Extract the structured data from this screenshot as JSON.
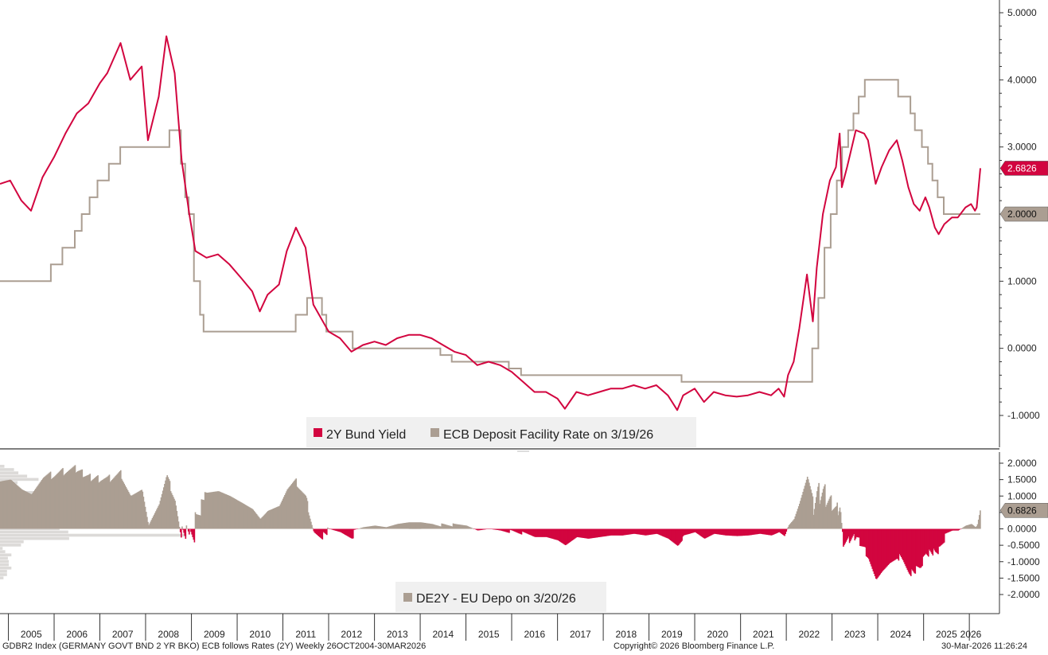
{
  "footer": {
    "left": "GDBR2 Index (GERMANY GOVT BND 2 YR BKO) ECB follows Rates (2Y) Weekly 26OCT2004-30MAR2026",
    "center": "Copyright© 2026 Bloomberg Finance L.P.",
    "right": "30-Mar-2026 11:26:24"
  },
  "colors": {
    "bund": "#d2053f",
    "depo": "#ab9e92",
    "spread_pos": "#ab9e92",
    "spread_neg": "#d2053f",
    "hist": "#dcdad8"
  },
  "chart_data": [
    {
      "type": "line",
      "ylim": [
        -1.0,
        5.0
      ],
      "yticks": [
        "5.0000",
        "4.0000",
        "3.0000",
        "2.0000",
        "1.0000",
        "0.0000",
        "-1.0000"
      ],
      "legend": "bottom-center",
      "series": [
        {
          "name": "2Y Bund Yield",
          "last_label": "2.6826",
          "points": [
            [
              "2004-10-26",
              2.45
            ],
            [
              "2005-01-15",
              2.5
            ],
            [
              "2005-04-15",
              2.2
            ],
            [
              "2005-07-01",
              2.05
            ],
            [
              "2005-10-01",
              2.55
            ],
            [
              "2006-01-01",
              2.85
            ],
            [
              "2006-04-01",
              3.2
            ],
            [
              "2006-07-01",
              3.5
            ],
            [
              "2006-10-01",
              3.65
            ],
            [
              "2007-01-01",
              3.95
            ],
            [
              "2007-03-01",
              4.1
            ],
            [
              "2007-06-15",
              4.55
            ],
            [
              "2007-09-01",
              4.0
            ],
            [
              "2007-12-01",
              4.2
            ],
            [
              "2008-01-20",
              3.1
            ],
            [
              "2008-04-15",
              3.75
            ],
            [
              "2008-06-15",
              4.65
            ],
            [
              "2008-08-20",
              4.1
            ],
            [
              "2008-10-15",
              2.8
            ],
            [
              "2008-12-15",
              2.0
            ],
            [
              "2009-02-01",
              1.45
            ],
            [
              "2009-05-01",
              1.35
            ],
            [
              "2009-08-01",
              1.4
            ],
            [
              "2009-11-01",
              1.25
            ],
            [
              "2010-02-01",
              1.05
            ],
            [
              "2010-05-01",
              0.85
            ],
            [
              "2010-07-01",
              0.55
            ],
            [
              "2010-09-01",
              0.8
            ],
            [
              "2010-12-01",
              0.95
            ],
            [
              "2011-02-01",
              1.45
            ],
            [
              "2011-04-15",
              1.8
            ],
            [
              "2011-07-01",
              1.5
            ],
            [
              "2011-09-01",
              0.65
            ],
            [
              "2011-11-01",
              0.45
            ],
            [
              "2012-01-01",
              0.25
            ],
            [
              "2012-04-01",
              0.15
            ],
            [
              "2012-07-01",
              -0.05
            ],
            [
              "2012-10-01",
              0.05
            ],
            [
              "2013-01-01",
              0.1
            ],
            [
              "2013-04-01",
              0.05
            ],
            [
              "2013-07-01",
              0.15
            ],
            [
              "2013-10-01",
              0.2
            ],
            [
              "2014-01-01",
              0.2
            ],
            [
              "2014-04-01",
              0.15
            ],
            [
              "2014-07-01",
              0.05
            ],
            [
              "2014-10-01",
              -0.05
            ],
            [
              "2015-01-01",
              -0.1
            ],
            [
              "2015-04-01",
              -0.25
            ],
            [
              "2015-07-01",
              -0.2
            ],
            [
              "2015-10-01",
              -0.25
            ],
            [
              "2016-01-01",
              -0.35
            ],
            [
              "2016-04-01",
              -0.5
            ],
            [
              "2016-07-01",
              -0.65
            ],
            [
              "2016-10-01",
              -0.65
            ],
            [
              "2017-01-01",
              -0.75
            ],
            [
              "2017-03-01",
              -0.9
            ],
            [
              "2017-06-01",
              -0.65
            ],
            [
              "2017-09-01",
              -0.7
            ],
            [
              "2017-12-01",
              -0.65
            ],
            [
              "2018-03-01",
              -0.6
            ],
            [
              "2018-06-01",
              -0.6
            ],
            [
              "2018-09-01",
              -0.55
            ],
            [
              "2018-12-01",
              -0.6
            ],
            [
              "2019-03-01",
              -0.55
            ],
            [
              "2019-06-01",
              -0.7
            ],
            [
              "2019-08-15",
              -0.92
            ],
            [
              "2019-10-01",
              -0.7
            ],
            [
              "2020-01-01",
              -0.6
            ],
            [
              "2020-03-15",
              -0.8
            ],
            [
              "2020-06-01",
              -0.65
            ],
            [
              "2020-09-01",
              -0.7
            ],
            [
              "2020-12-01",
              -0.72
            ],
            [
              "2021-03-01",
              -0.7
            ],
            [
              "2021-06-01",
              -0.65
            ],
            [
              "2021-09-01",
              -0.7
            ],
            [
              "2021-11-01",
              -0.6
            ],
            [
              "2021-12-15",
              -0.72
            ],
            [
              "2022-01-15",
              -0.4
            ],
            [
              "2022-03-01",
              -0.2
            ],
            [
              "2022-04-15",
              0.3
            ],
            [
              "2022-06-15",
              1.1
            ],
            [
              "2022-08-01",
              0.4
            ],
            [
              "2022-09-01",
              1.2
            ],
            [
              "2022-10-20",
              2.0
            ],
            [
              "2022-12-15",
              2.5
            ],
            [
              "2023-02-01",
              2.7
            ],
            [
              "2023-03-03",
              3.2
            ],
            [
              "2023-03-20",
              2.4
            ],
            [
              "2023-05-01",
              2.7
            ],
            [
              "2023-07-10",
              3.25
            ],
            [
              "2023-09-15",
              3.2
            ],
            [
              "2023-10-15",
              3.1
            ],
            [
              "2023-12-15",
              2.45
            ],
            [
              "2024-02-01",
              2.7
            ],
            [
              "2024-04-01",
              2.95
            ],
            [
              "2024-06-01",
              3.1
            ],
            [
              "2024-07-15",
              2.8
            ],
            [
              "2024-09-01",
              2.4
            ],
            [
              "2024-10-15",
              2.15
            ],
            [
              "2024-12-01",
              2.05
            ],
            [
              "2025-01-15",
              2.25
            ],
            [
              "2025-02-15",
              2.1
            ],
            [
              "2025-04-01",
              1.8
            ],
            [
              "2025-05-01",
              1.7
            ],
            [
              "2025-06-15",
              1.85
            ],
            [
              "2025-08-15",
              1.95
            ],
            [
              "2025-10-01",
              1.95
            ],
            [
              "2025-12-01",
              2.1
            ],
            [
              "2026-01-15",
              2.15
            ],
            [
              "2026-02-15",
              2.05
            ],
            [
              "2026-03-01",
              2.1
            ],
            [
              "2026-03-30",
              2.6826
            ]
          ]
        },
        {
          "name": "ECB Deposit Facility Rate on 3/19/26",
          "last_label": "2.0000",
          "step": true,
          "points": [
            [
              "2004-10-26",
              1.0
            ],
            [
              "2005-12-06",
              1.25
            ],
            [
              "2006-03-08",
              1.5
            ],
            [
              "2006-06-15",
              1.75
            ],
            [
              "2006-08-09",
              2.0
            ],
            [
              "2006-10-11",
              2.25
            ],
            [
              "2006-12-13",
              2.5
            ],
            [
              "2007-03-14",
              2.75
            ],
            [
              "2007-06-13",
              3.0
            ],
            [
              "2008-07-09",
              3.25
            ],
            [
              "2008-10-09",
              2.75
            ],
            [
              "2008-11-12",
              2.25
            ],
            [
              "2008-12-10",
              2.0
            ],
            [
              "2009-01-21",
              1.0
            ],
            [
              "2009-03-11",
              0.5
            ],
            [
              "2009-04-08",
              0.25
            ],
            [
              "2011-04-13",
              0.5
            ],
            [
              "2011-07-13",
              0.75
            ],
            [
              "2011-11-09",
              0.5
            ],
            [
              "2011-12-14",
              0.25
            ],
            [
              "2012-07-11",
              0.0
            ],
            [
              "2014-06-11",
              -0.1
            ],
            [
              "2014-09-10",
              -0.2
            ],
            [
              "2015-12-09",
              -0.3
            ],
            [
              "2016-03-16",
              -0.4
            ],
            [
              "2019-09-18",
              -0.5
            ],
            [
              "2022-07-27",
              0.0
            ],
            [
              "2022-09-14",
              0.75
            ],
            [
              "2022-11-02",
              1.5
            ],
            [
              "2022-12-21",
              2.0
            ],
            [
              "2023-02-08",
              2.5
            ],
            [
              "2023-03-22",
              3.0
            ],
            [
              "2023-05-10",
              3.25
            ],
            [
              "2023-06-21",
              3.5
            ],
            [
              "2023-08-02",
              3.75
            ],
            [
              "2023-09-20",
              4.0
            ],
            [
              "2024-06-12",
              3.75
            ],
            [
              "2024-09-18",
              3.5
            ],
            [
              "2024-10-23",
              3.25
            ],
            [
              "2024-12-18",
              3.0
            ],
            [
              "2025-02-05",
              2.75
            ],
            [
              "2025-03-12",
              2.5
            ],
            [
              "2025-04-23",
              2.25
            ],
            [
              "2025-06-11",
              2.0
            ],
            [
              "2026-03-30",
              2.0
            ]
          ]
        }
      ]
    },
    {
      "type": "area",
      "ylim": [
        -2.5,
        2.25
      ],
      "yticks": [
        "2.0000",
        "1.5000",
        "1.0000",
        "0.5000",
        "0.0000",
        "-0.5000",
        "-1.0000",
        "-1.5000",
        "-2.0000"
      ],
      "legend": "bottom-center",
      "series": [
        {
          "name": "DE2Y - EU Depo on 3/20/26",
          "last_label": "0.6826",
          "derived_from": "2Y Bund Yield minus ECB Deposit Facility Rate"
        }
      ]
    }
  ],
  "x_axis": {
    "years": [
      "2005",
      "2006",
      "2007",
      "2008",
      "2009",
      "2010",
      "2011",
      "2012",
      "2013",
      "2014",
      "2015",
      "2016",
      "2017",
      "2018",
      "2019",
      "2020",
      "2021",
      "2022",
      "2023",
      "2024",
      "2025",
      "2026"
    ]
  },
  "legend_top": {
    "item1": "2Y Bund Yield",
    "item2": "ECB Deposit Facility Rate on 3/19/26"
  },
  "legend_bottom": {
    "item1": "DE2Y - EU Depo on 3/20/26"
  }
}
